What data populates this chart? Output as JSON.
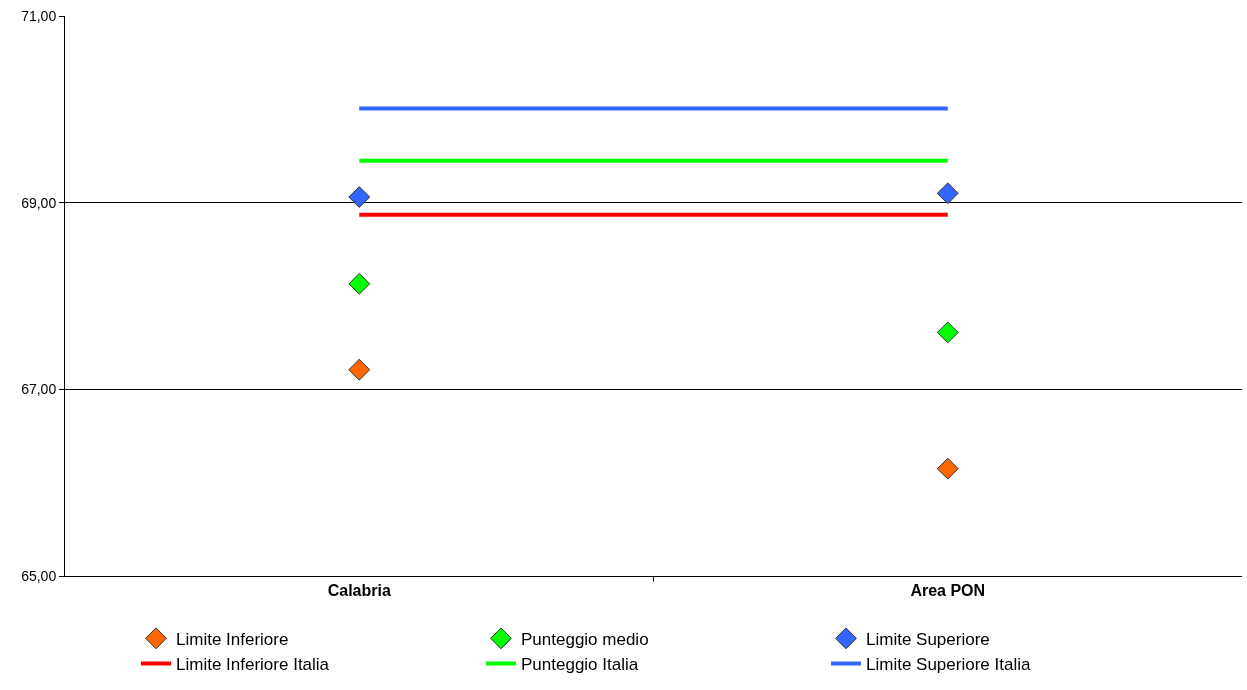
{
  "chart_data": {
    "type": "line",
    "categories": [
      "Calabria",
      "Area PON"
    ],
    "series": [
      {
        "name": "Limite Inferiore",
        "type": "scatter",
        "color": "#ff6600",
        "values": [
          67.21,
          66.15
        ]
      },
      {
        "name": "Punteggio medio",
        "type": "scatter",
        "color": "#00ff00",
        "values": [
          68.13,
          67.61
        ]
      },
      {
        "name": "Limite Superiore",
        "type": "scatter",
        "color": "#3366ff",
        "values": [
          69.06,
          69.1
        ]
      },
      {
        "name": "Limite Inferiore Italia",
        "marker": "none",
        "color": "#ff0000",
        "values": [
          68.87,
          68.87
        ]
      },
      {
        "name": "Punteggio Italia",
        "marker": "none",
        "color": "#00ff00",
        "values": [
          69.45,
          69.45
        ]
      },
      {
        "name": "Limite Superiore Italia",
        "marker": "none",
        "color": "#3366ff",
        "values": [
          70.01,
          70.01
        ]
      }
    ],
    "ylim": [
      65,
      71
    ],
    "yticks": [
      {
        "value": 65,
        "label": "65,00"
      },
      {
        "value": 67,
        "label": "67,00"
      },
      {
        "value": 69,
        "label": "69,00"
      },
      {
        "value": 71,
        "label": "71,00"
      }
    ],
    "grid": "y",
    "legend": "bottom",
    "marker": "diamond",
    "line_style": "solid"
  }
}
